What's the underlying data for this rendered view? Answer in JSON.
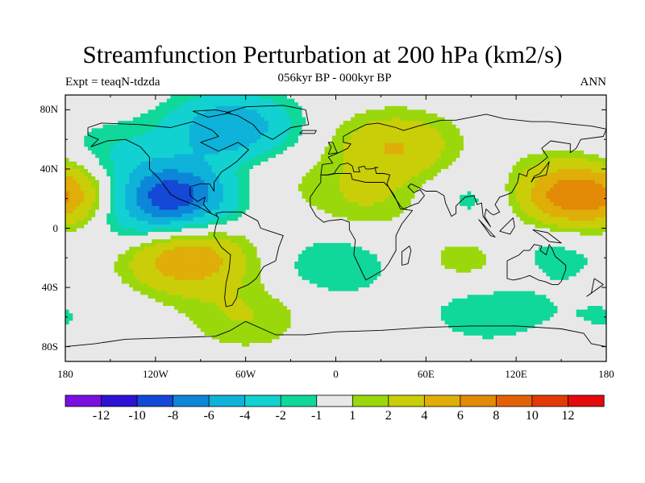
{
  "chart_data": {
    "type": "heatmap",
    "title": "Streamfunction Perturbation at 200 hPa (km2/s)",
    "subtitle_left": "Expt = teaqN-tdzda",
    "subtitle_center": "056kyr BP - 000kyr BP",
    "subtitle_right": "ANN",
    "x_range": [
      -180,
      180
    ],
    "y_range": [
      -90,
      90
    ],
    "lon_ticks": [
      {
        "value": -180,
        "label": "180"
      },
      {
        "value": -120,
        "label": "120W"
      },
      {
        "value": -60,
        "label": "60W"
      },
      {
        "value": 0,
        "label": "0"
      },
      {
        "value": 60,
        "label": "60E"
      },
      {
        "value": 120,
        "label": "120E"
      },
      {
        "value": 180,
        "label": "180"
      }
    ],
    "lat_ticks": [
      {
        "value": 80,
        "label": "80N"
      },
      {
        "value": 40,
        "label": "40N"
      },
      {
        "value": 0,
        "label": "0"
      },
      {
        "value": -40,
        "label": "40S"
      },
      {
        "value": -80,
        "label": "80S"
      }
    ],
    "colorbar": {
      "levels": [
        "-12",
        "-10",
        "-8",
        "-6",
        "-4",
        "-2",
        "-1",
        "1",
        "2",
        "4",
        "6",
        "8",
        "10",
        "12"
      ],
      "colors": [
        "#7a0fe0",
        "#2e12d4",
        "#1448d6",
        "#0d86d8",
        "#0fb2d8",
        "#12d1d1",
        "#10d79a",
        "#e8e8e8",
        "#9ad80c",
        "#c9ce08",
        "#dfae08",
        "#e38a07",
        "#e36206",
        "#e23a06",
        "#e20a0a"
      ]
    },
    "field_centers": [
      {
        "lon": -108,
        "lat": 22,
        "value": -9
      },
      {
        "lon": -70,
        "lat": 68,
        "value": -6
      },
      {
        "lon": -148,
        "lat": 50,
        "value": -2
      },
      {
        "lon": -135,
        "lat": 5,
        "value": -2
      },
      {
        "lon": -100,
        "lat": -20,
        "value": 6
      },
      {
        "lon": 40,
        "lat": 55,
        "value": 4
      },
      {
        "lon": 20,
        "lat": 20,
        "value": 2
      },
      {
        "lon": 150,
        "lat": 22,
        "value": 6
      },
      {
        "lon": -175,
        "lat": 22,
        "value": 4
      },
      {
        "lon": 100,
        "lat": 20,
        "value": -2
      },
      {
        "lon": 140,
        "lat": -15,
        "value": -2
      },
      {
        "lon": 0,
        "lat": -25,
        "value": -2
      },
      {
        "lon": 95,
        "lat": -22,
        "value": 2
      },
      {
        "lon": -60,
        "lat": -60,
        "value": 2
      },
      {
        "lon": 100,
        "lat": -55,
        "value": -2
      },
      {
        "lon": -180,
        "lat": -60,
        "value": -1
      },
      {
        "lon": -50,
        "lat": 35,
        "value": 1
      }
    ]
  }
}
